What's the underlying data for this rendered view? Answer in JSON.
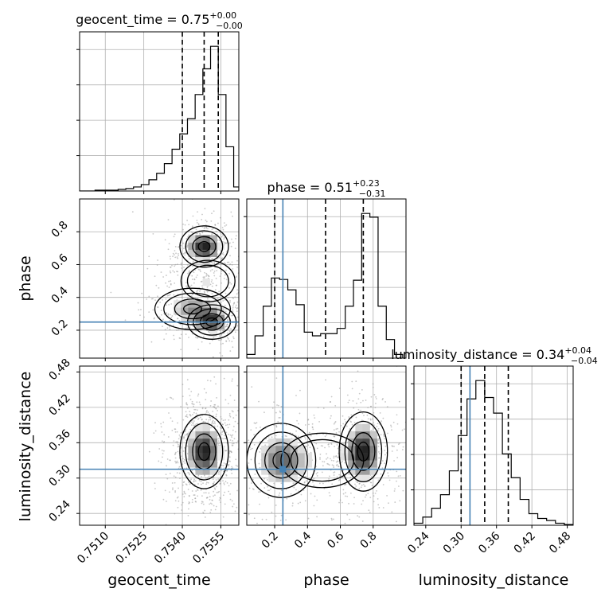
{
  "chart_data": {
    "type": "corner",
    "parameters": [
      "geocent_time",
      "phase",
      "luminosity_distance"
    ],
    "truths": {
      "geocent_time": null,
      "phase": 0.25,
      "luminosity_distance": 0.315
    },
    "titles": [
      {
        "param": "geocent_time",
        "label": "geocent_time",
        "median": "0.75",
        "plus": "+0.00",
        "minus": "−0.00",
        "quantiles": [
          0.754,
          0.75485,
          0.7554
        ]
      },
      {
        "param": "phase",
        "label": "phase",
        "median": "0.51",
        "plus": "+0.23",
        "minus": "−0.31",
        "quantiles": [
          0.2,
          0.51,
          0.74
        ]
      },
      {
        "param": "luminosity_distance",
        "label": "luminosity_distance",
        "median": "0.34",
        "plus": "+0.04",
        "minus": "−0.04",
        "quantiles": [
          0.3,
          0.34,
          0.38
        ]
      }
    ],
    "axes": {
      "geocent_time": {
        "range": [
          0.75,
          0.7562
        ],
        "ticks": [
          0.751,
          0.7525,
          0.754,
          0.7555
        ],
        "tick_labels": [
          "0.7510",
          "0.7525",
          "0.7540",
          "0.7555"
        ]
      },
      "phase": {
        "range": [
          0.03,
          1.0
        ],
        "ticks": [
          0.2,
          0.4,
          0.6,
          0.8
        ],
        "tick_labels": [
          "0.2",
          "0.4",
          "0.6",
          "0.8"
        ]
      },
      "luminosity_distance": {
        "range": [
          0.22,
          0.49
        ],
        "ticks": [
          0.24,
          0.3,
          0.36,
          0.42,
          0.48
        ],
        "tick_labels": [
          "0.24",
          "0.30",
          "0.36",
          "0.42",
          "0.48"
        ]
      }
    },
    "histograms": {
      "geocent_time": {
        "bin_edges": [
          0.75,
          0.7503,
          0.7506,
          0.7509,
          0.7512,
          0.7515,
          0.7518,
          0.7521,
          0.7524,
          0.7527,
          0.753,
          0.7533,
          0.7536,
          0.7539,
          0.7542,
          0.7545,
          0.7548,
          0.7551,
          0.7554,
          0.7557,
          0.756,
          0.7562
        ],
        "counts": [
          0,
          0,
          1,
          1,
          1,
          2,
          3,
          5,
          8,
          14,
          22,
          34,
          52,
          71,
          90,
          120,
          152,
          180,
          120,
          55,
          5
        ]
      },
      "phase": {
        "bin_edges": [
          0.03,
          0.08,
          0.13,
          0.18,
          0.23,
          0.28,
          0.33,
          0.38,
          0.43,
          0.48,
          0.53,
          0.58,
          0.63,
          0.68,
          0.73,
          0.78,
          0.83,
          0.88,
          0.93,
          0.98
        ],
        "counts": [
          5,
          30,
          70,
          108,
          106,
          92,
          72,
          35,
          30,
          33,
          33,
          40,
          70,
          105,
          195,
          190,
          70,
          25,
          5
        ]
      },
      "luminosity_distance": {
        "bin_edges": [
          0.22,
          0.235,
          0.25,
          0.265,
          0.28,
          0.295,
          0.31,
          0.325,
          0.34,
          0.355,
          0.37,
          0.385,
          0.4,
          0.415,
          0.43,
          0.445,
          0.46,
          0.475,
          0.49
        ],
        "counts": [
          3,
          12,
          25,
          45,
          80,
          132,
          186,
          213,
          188,
          165,
          105,
          70,
          38,
          17,
          10,
          7,
          3,
          1
        ]
      }
    },
    "density_modes": {
      "phase_vs_geocent_time": [
        {
          "x": 0.75485,
          "y": 0.71,
          "sx": 0.00045,
          "sy": 0.06,
          "w": 1.0
        },
        {
          "x": 0.75515,
          "y": 0.25,
          "sx": 0.00045,
          "sy": 0.05,
          "w": 0.8
        },
        {
          "x": 0.7544,
          "y": 0.33,
          "sx": 0.0007,
          "sy": 0.06,
          "w": 0.6
        },
        {
          "x": 0.755,
          "y": 0.5,
          "sx": 0.0005,
          "sy": 0.06,
          "w": 0.35
        }
      ],
      "luminosity_distance_vs_geocent_time": [
        {
          "x": 0.75485,
          "y": 0.345,
          "sx": 0.00045,
          "sy": 0.03,
          "w": 1.0
        }
      ],
      "luminosity_distance_vs_phase": [
        {
          "x": 0.74,
          "y": 0.345,
          "sx": 0.07,
          "sy": 0.032,
          "w": 1.0
        },
        {
          "x": 0.24,
          "y": 0.33,
          "sx": 0.1,
          "sy": 0.03,
          "w": 0.75
        },
        {
          "x": 0.49,
          "y": 0.33,
          "sx": 0.12,
          "sy": 0.022,
          "w": 0.25
        }
      ]
    },
    "grid": true,
    "truth_color": "#4682b4",
    "line_color": "#000000",
    "point_color": "#9a9a9a"
  }
}
